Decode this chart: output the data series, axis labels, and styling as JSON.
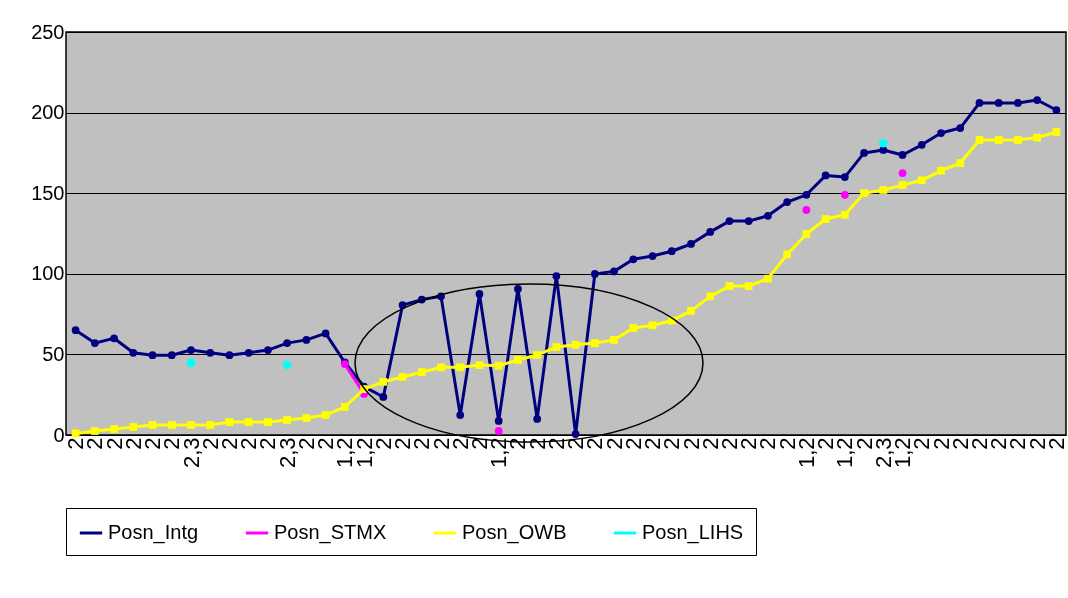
{
  "chart_data": {
    "type": "line",
    "categories": [
      "2",
      "2",
      "2",
      "2",
      "2",
      "2",
      "2,3",
      "2",
      "2",
      "2",
      "2",
      "2,3",
      "2",
      "2",
      "1,2",
      "1,2",
      "2",
      "2",
      "2",
      "2",
      "2",
      "2",
      "1,2",
      "2",
      "2",
      "2",
      "2",
      "2",
      "2",
      "2",
      "2",
      "2",
      "2",
      "2",
      "2",
      "2",
      "2",
      "2",
      "1,2",
      "2",
      "1,2",
      "2",
      "2,3",
      "1,2",
      "2",
      "2",
      "2",
      "2",
      "2",
      "2",
      "2",
      "2"
    ],
    "series": [
      {
        "name": "Posn_Intg",
        "color": "#000080",
        "marker": "circle",
        "values": [
          65,
          57,
          60,
          51,
          49.5,
          49.5,
          52.7,
          51,
          49.5,
          51,
          52.7,
          57,
          59,
          63,
          45,
          30,
          23.6,
          80.6,
          84,
          86,
          12.4,
          87.5,
          8.7,
          90.6,
          10,
          98.6,
          0.6,
          99.9,
          101.5,
          109,
          111,
          114,
          118.5,
          126,
          132.7,
          132.7,
          136,
          144.5,
          149,
          161,
          160,
          175,
          176.8,
          173.7,
          180,
          187.3,
          190.4,
          206,
          206,
          206,
          207.8,
          201.6
        ]
      },
      {
        "name": "Posn_STMX",
        "color": "#ff00ff",
        "marker": "circle",
        "values": [
          null,
          null,
          null,
          null,
          null,
          null,
          null,
          null,
          null,
          null,
          null,
          null,
          null,
          null,
          44,
          25.5,
          null,
          null,
          null,
          null,
          null,
          null,
          2.5,
          null,
          null,
          null,
          null,
          null,
          null,
          null,
          null,
          null,
          null,
          null,
          null,
          null,
          null,
          null,
          139.6,
          null,
          149,
          null,
          null,
          162.5,
          null,
          null,
          null,
          null,
          null,
          null,
          null,
          null
        ]
      },
      {
        "name": "Posn_OWB",
        "color": "#ffff00",
        "marker": "square",
        "values": [
          1,
          2.5,
          3.7,
          5,
          6.2,
          6.2,
          6.2,
          6.2,
          8,
          8,
          8,
          9.3,
          10.5,
          12.4,
          17.4,
          28.5,
          33,
          36,
          39,
          42,
          42,
          43.4,
          43,
          46.5,
          49.6,
          54.6,
          56,
          57,
          59,
          66.4,
          68,
          71,
          77,
          86,
          92.4,
          92.4,
          97,
          112,
          124.7,
          134,
          136.6,
          150,
          152,
          155,
          158,
          164,
          168.7,
          183,
          183,
          183,
          184.5,
          188
        ]
      },
      {
        "name": "Posn_LIHS",
        "type": "scatter",
        "color": "#00ffff",
        "marker": "circle",
        "values": [
          null,
          null,
          null,
          null,
          null,
          null,
          44.7,
          null,
          null,
          null,
          null,
          43.4,
          null,
          null,
          null,
          null,
          null,
          null,
          null,
          null,
          null,
          null,
          null,
          null,
          null,
          null,
          null,
          null,
          null,
          null,
          null,
          null,
          null,
          null,
          null,
          null,
          null,
          null,
          null,
          null,
          null,
          null,
          181,
          null,
          null,
          null,
          null,
          null,
          null,
          null,
          null,
          null
        ]
      }
    ],
    "ylim": [
      0,
      250
    ],
    "yticks": [
      0,
      50,
      100,
      150,
      200,
      250
    ],
    "grid": "y",
    "legend": "bottom",
    "line_style": "solid"
  }
}
